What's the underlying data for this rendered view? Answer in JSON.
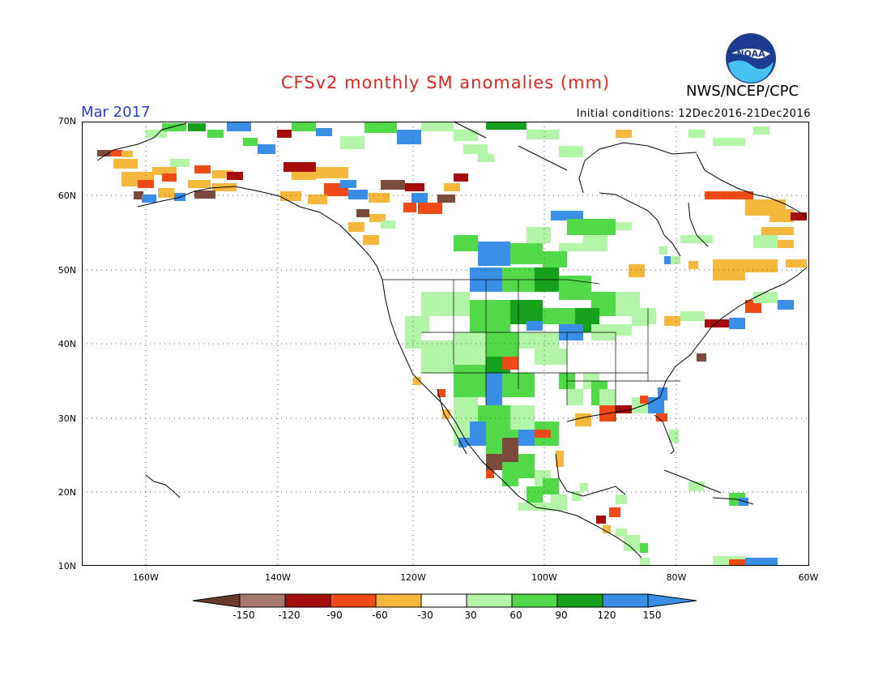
{
  "header": {
    "title": "CFSv2 monthly SM anomalies (mm)",
    "agency": "NWS/NCEP/CPC",
    "logo_text": "NOAA",
    "valid_month": "Mar 2017",
    "initial_conditions": "Initial conditions: 12Dec2016-21Dec2016"
  },
  "axes": {
    "lat_labels": [
      "70N",
      "60N",
      "50N",
      "40N",
      "30N",
      "20N",
      "10N"
    ],
    "lon_labels": [
      "160W",
      "140W",
      "120W",
      "100W",
      "80W",
      "60W"
    ]
  },
  "colorbar": {
    "labels": [
      "-150",
      "-120",
      "-90",
      "-60",
      "-30",
      "30",
      "60",
      "90",
      "120",
      "150"
    ],
    "colors": [
      "#6b3a2a",
      "#a87a6e",
      "#a50d0d",
      "#ee4a16",
      "#f5b83d",
      "#ffffff",
      "#b3f5a6",
      "#52d94a",
      "#16a11c",
      "#3a8ee6",
      "#3a8ee6"
    ]
  },
  "colors": {
    "brown": "#7a4a3a",
    "lightbrown": "#a87a6e",
    "darkred": "#a50d0d",
    "red": "#ee4a16",
    "orange": "#f5b83d",
    "lightgreen": "#b3f5a6",
    "green": "#52d94a",
    "darkgreen": "#16a11c",
    "blue": "#3a8ee6",
    "title_red": "#e0281e",
    "month_blue": "#2b3bd6"
  }
}
